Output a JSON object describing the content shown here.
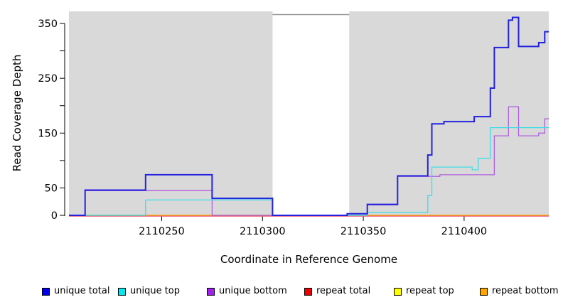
{
  "chart_data": {
    "type": "line",
    "style": "step-after",
    "title": "",
    "xlabel": "Coordinate in Reference Genome",
    "ylabel": "Read Coverage Depth",
    "xlim": [
      2110204,
      2110442
    ],
    "ylim": [
      0,
      350
    ],
    "x_ticks": [
      2110250,
      2110300,
      2110350,
      2110400
    ],
    "y_ticks": [
      0,
      50,
      100,
      150,
      200,
      250,
      300,
      350
    ],
    "y_tick_labels_shown": [
      0,
      50,
      150,
      250,
      350
    ],
    "plot_background": "#d9d9d9",
    "gap_region": {
      "start": 2110305,
      "end": 2110343,
      "color": "#ffffff",
      "edge_color": "#979797"
    },
    "grid": false,
    "legend_position": "bottom",
    "series": [
      {
        "name": "unique total",
        "color": "#0000ee",
        "line_color": "#2222e0",
        "width": 2,
        "z": 6,
        "points": [
          [
            2110204,
            0
          ],
          [
            2110212,
            46
          ],
          [
            2110242,
            74
          ],
          [
            2110275,
            31
          ],
          [
            2110305,
            0
          ],
          [
            2110342,
            3
          ],
          [
            2110352,
            20
          ],
          [
            2110367,
            72
          ],
          [
            2110382,
            110
          ],
          [
            2110384,
            167
          ],
          [
            2110390,
            171
          ],
          [
            2110405,
            180
          ],
          [
            2110413,
            232
          ],
          [
            2110415,
            306
          ],
          [
            2110422,
            356
          ],
          [
            2110424,
            361
          ],
          [
            2110427,
            308
          ],
          [
            2110437,
            315
          ],
          [
            2110440,
            335
          ],
          [
            2110442,
            335
          ]
        ]
      },
      {
        "name": "unique top",
        "color": "#00e8f0",
        "line_color": "#3cdde6",
        "width": 1.3,
        "z": 5,
        "points": [
          [
            2110204,
            0
          ],
          [
            2110242,
            28
          ],
          [
            2110305,
            0
          ],
          [
            2110352,
            5
          ],
          [
            2110382,
            36
          ],
          [
            2110384,
            88
          ],
          [
            2110404,
            83
          ],
          [
            2110407,
            104
          ],
          [
            2110413,
            160
          ],
          [
            2110442,
            160
          ]
        ]
      },
      {
        "name": "unique bottom",
        "color": "#a020f0",
        "line_color": "#b05fdd",
        "width": 1.3,
        "z": 4,
        "points": [
          [
            2110204,
            0
          ],
          [
            2110212,
            45
          ],
          [
            2110275,
            0
          ],
          [
            2110352,
            19
          ],
          [
            2110367,
            71
          ],
          [
            2110388,
            74
          ],
          [
            2110415,
            145
          ],
          [
            2110422,
            198
          ],
          [
            2110427,
            145
          ],
          [
            2110437,
            150
          ],
          [
            2110440,
            176
          ],
          [
            2110442,
            176
          ]
        ]
      },
      {
        "name": "repeat total",
        "color": "#ee0000",
        "line_color": "#e8506a",
        "width": 1.1,
        "z": 2,
        "points": [
          [
            2110204,
            0
          ],
          [
            2110442,
            0
          ]
        ]
      },
      {
        "name": "repeat top",
        "color": "#ffff00",
        "line_color": "#f0f000",
        "width": 1.1,
        "z": 1,
        "points": [
          [
            2110204,
            0
          ],
          [
            2110442,
            0
          ]
        ]
      },
      {
        "name": "repeat bottom",
        "color": "#ffa500",
        "line_color": "#ff9f1a",
        "width": 1.6,
        "z": 3,
        "points": [
          [
            2110204,
            0
          ],
          [
            2110442,
            0
          ]
        ]
      }
    ]
  },
  "legend": {
    "items": [
      {
        "label": "unique total"
      },
      {
        "label": "unique top"
      },
      {
        "label": "unique bottom"
      },
      {
        "label": "repeat total"
      },
      {
        "label": "repeat top"
      },
      {
        "label": "repeat bottom"
      }
    ]
  }
}
